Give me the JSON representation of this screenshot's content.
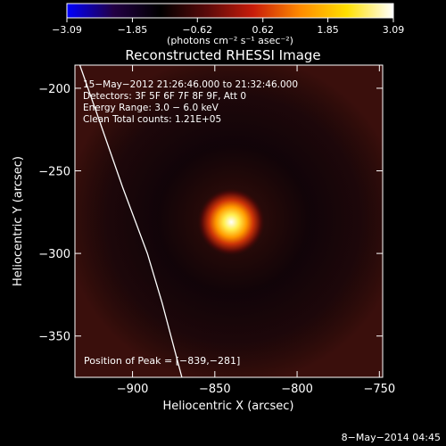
{
  "chart_data": {
    "type": "heatmap",
    "title": "Reconstructed RHESSI Image",
    "xlabel": "Heliocentric X (arcsec)",
    "ylabel": "Heliocentric Y (arcsec)",
    "xlim": [
      -935,
      -748
    ],
    "ylim": [
      -375,
      -186
    ],
    "x_ticks": [
      -900,
      -850,
      -800,
      -750
    ],
    "y_ticks": [
      -200,
      -250,
      -300,
      -350
    ],
    "colorbar": {
      "range": [
        -3.09,
        3.09
      ],
      "tick_values": [
        -3.09,
        -1.85,
        -0.62,
        0.62,
        1.85,
        3.09
      ],
      "tick_labels": [
        "−3.09",
        "−1.85",
        "−0.62",
        "0.62",
        "1.85",
        "3.09"
      ],
      "unit_label": "(photons cm⁻² s⁻¹ asec⁻²)",
      "colors": [
        "#0000ff",
        "#220044",
        "#000000",
        "#5a0a0a",
        "#c81c0a",
        "#ff8a00",
        "#ffe000",
        "#ffffff"
      ]
    },
    "source": {
      "x": -840,
      "y": -281,
      "label": "Position of Peak = [−839,−281]"
    },
    "info_lines": [
      "15−May−2012 21:26:46.000 to 21:32:46.000",
      "Detectors: 3F 5F 6F 7F 8F 9F, Att 0",
      "Energy Range: 3.0 − 6.0 keV",
      "Clean    Total counts: 1.21E+05"
    ],
    "limb_points": [
      [
        -932,
        -186
      ],
      [
        -920,
        -220
      ],
      [
        -906,
        -260
      ],
      [
        -891,
        -300
      ],
      [
        -882,
        -330
      ],
      [
        -870,
        -375
      ]
    ]
  },
  "footer": {
    "date_stamp": "8−May−2014 04:45"
  }
}
